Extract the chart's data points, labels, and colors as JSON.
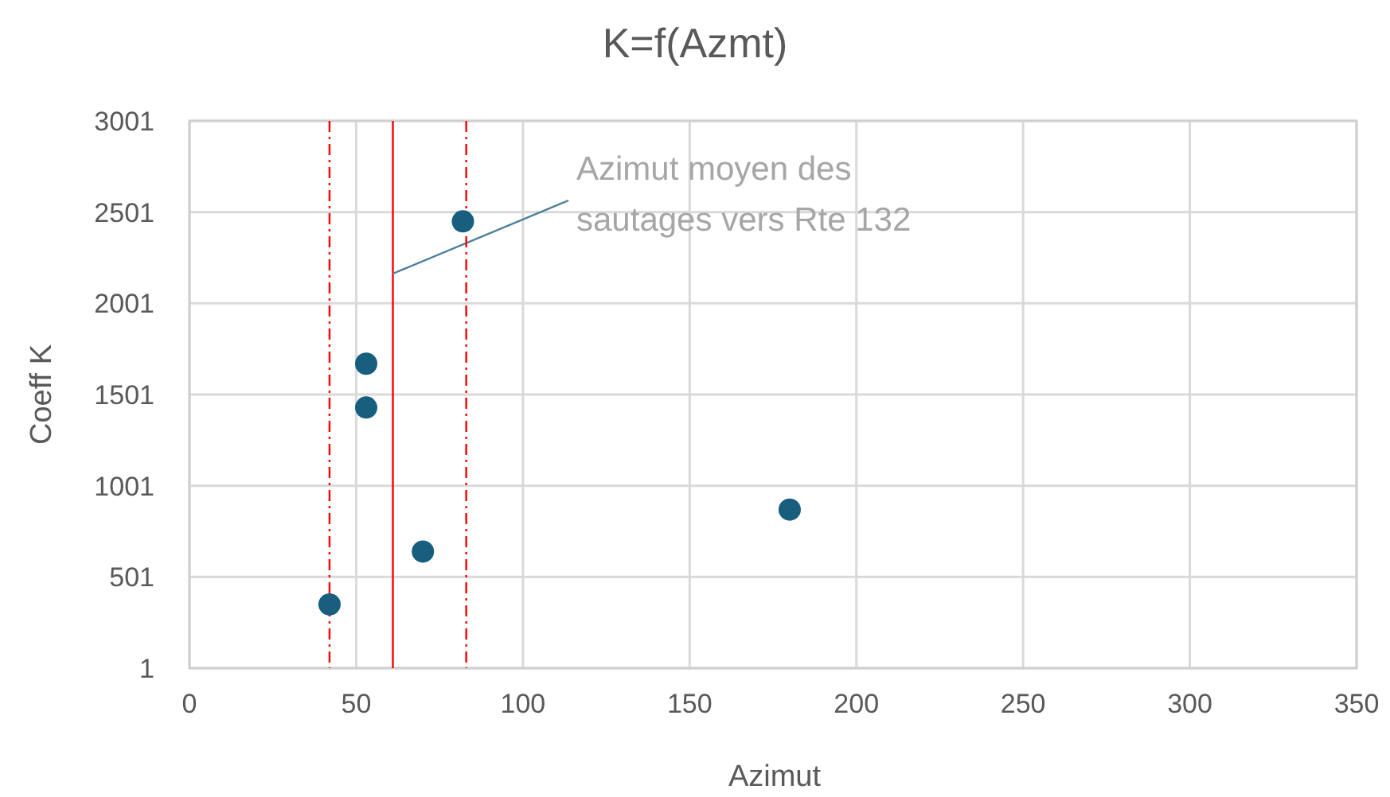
{
  "chart_data": {
    "type": "scatter",
    "title": "K=f(Azmt)",
    "xlabel": "Azimut",
    "ylabel": "Coeff K",
    "x": [
      42,
      53,
      53,
      70,
      82,
      180
    ],
    "series": [
      {
        "color": "#175e7f",
        "values": [
          350,
          1670,
          1430,
          640,
          2450,
          870
        ]
      }
    ],
    "xlim": [
      0,
      350
    ],
    "xticks": [
      0,
      50,
      100,
      150,
      200,
      250,
      300,
      350
    ],
    "ylim": [
      1,
      3001
    ],
    "yticks": [
      1,
      501,
      1001,
      1501,
      2001,
      2501,
      3001
    ],
    "grid": true,
    "marker": "circle",
    "ref_lines": [
      {
        "axis": "x",
        "value": 42,
        "color": "#ff0000",
        "line_style": "dashed"
      },
      {
        "axis": "x",
        "value": 61,
        "color": "#ff0000",
        "line_style": "solid",
        "label": "Azimut moyen des sautages vers Rte 132"
      },
      {
        "axis": "x",
        "value": 83,
        "color": "#ff0000",
        "line_style": "dashed"
      }
    ]
  }
}
